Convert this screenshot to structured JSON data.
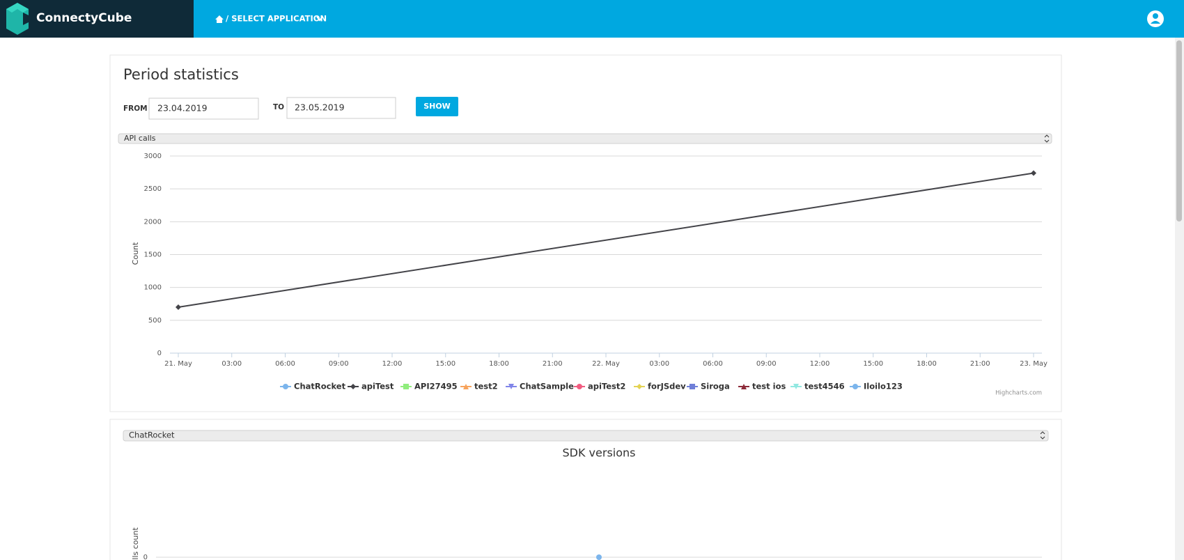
{
  "header": {
    "brand": "ConnectyCube",
    "breadcrumb": "/ SELECT APPLICATION"
  },
  "panel": {
    "title": "Period statistics",
    "from_label": "FROM",
    "from_value": "23.04.2019",
    "to_label": "TO",
    "to_value": "23.05.2019",
    "button": "SHOW",
    "metric_select": "API calls",
    "app_select": "ChatRocket"
  },
  "chart_data": [
    {
      "type": "line",
      "y_label": "Count",
      "credit": "Highcharts.com",
      "xlim": [
        0,
        48
      ],
      "xticks": [
        {
          "value": 0,
          "label": "21. May"
        },
        {
          "value": 3,
          "label": "03:00"
        },
        {
          "value": 6,
          "label": "06:00"
        },
        {
          "value": 9,
          "label": "09:00"
        },
        {
          "value": 12,
          "label": "12:00"
        },
        {
          "value": 15,
          "label": "15:00"
        },
        {
          "value": 18,
          "label": "18:00"
        },
        {
          "value": 21,
          "label": "21:00"
        },
        {
          "value": 24,
          "label": "22. May"
        },
        {
          "value": 27,
          "label": "03:00"
        },
        {
          "value": 30,
          "label": "06:00"
        },
        {
          "value": 33,
          "label": "09:00"
        },
        {
          "value": 36,
          "label": "12:00"
        },
        {
          "value": 39,
          "label": "15:00"
        },
        {
          "value": 42,
          "label": "18:00"
        },
        {
          "value": 45,
          "label": "21:00"
        },
        {
          "value": 48,
          "label": "23. May"
        }
      ],
      "ylim": [
        0,
        3000
      ],
      "yticks": [
        0,
        500,
        1000,
        1500,
        2000,
        2500,
        3000
      ],
      "grid": true,
      "series": [
        {
          "name": "ChatRocket",
          "color": "#7cb5ec",
          "marker": "circle",
          "x": [],
          "values": []
        },
        {
          "name": "apiTest",
          "color": "#434348",
          "marker": "diamond",
          "x": [
            0,
            48
          ],
          "values": [
            700,
            2740
          ]
        },
        {
          "name": "API27495",
          "color": "#90ed7d",
          "marker": "square",
          "x": [],
          "values": []
        },
        {
          "name": "test2",
          "color": "#f7a35c",
          "marker": "triangle",
          "x": [],
          "values": []
        },
        {
          "name": "ChatSample",
          "color": "#8085e9",
          "marker": "triangle-down",
          "x": [],
          "values": []
        },
        {
          "name": "apiTest2",
          "color": "#f15c80",
          "marker": "circle",
          "x": [],
          "values": []
        },
        {
          "name": "forJSdev",
          "color": "#e4d354",
          "marker": "diamond",
          "x": [],
          "values": []
        },
        {
          "name": "Siroga",
          "color": "#6f7fd8",
          "marker": "square",
          "x": [],
          "values": []
        },
        {
          "name": "test ios",
          "color": "#8d2b3a",
          "marker": "triangle",
          "x": [],
          "values": []
        },
        {
          "name": "test4546",
          "color": "#91e8e1",
          "marker": "triangle-down",
          "x": [],
          "values": []
        },
        {
          "name": "Iloilo123",
          "color": "#7cb5ec",
          "marker": "circle",
          "x": [],
          "values": []
        }
      ]
    },
    {
      "type": "line",
      "title": "SDK versions",
      "y_label": "Calls count",
      "categories": [
        null
      ],
      "values": [
        0
      ],
      "color": "#7cb5ec",
      "ylim": [
        0,
        1
      ],
      "yticks": [
        0
      ],
      "grid": true
    }
  ]
}
